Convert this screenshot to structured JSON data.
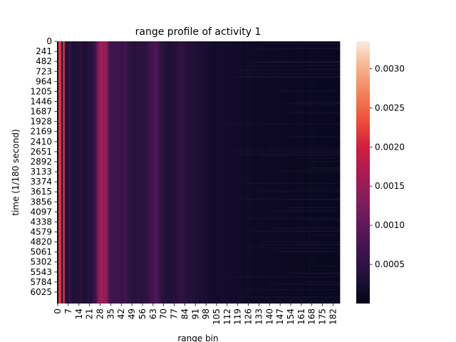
{
  "chart_data": {
    "type": "heatmap",
    "title": "range profile of activity 1",
    "xlabel": "range bin",
    "ylabel": "time (1/180 second)",
    "x_tick_labels": [
      "0",
      "7",
      "14",
      "21",
      "28",
      "35",
      "42",
      "49",
      "56",
      "63",
      "70",
      "77",
      "84",
      "91",
      "98",
      "105",
      "112",
      "119",
      "126",
      "133",
      "140",
      "147",
      "154",
      "161",
      "168",
      "175",
      "182"
    ],
    "y_tick_labels": [
      "0",
      "241",
      "482",
      "723",
      "964",
      "1205",
      "1446",
      "1687",
      "1928",
      "2169",
      "2410",
      "2651",
      "2892",
      "3133",
      "3374",
      "3615",
      "3856",
      "4097",
      "4338",
      "4579",
      "4820",
      "5061",
      "5302",
      "5543",
      "5784",
      "6025"
    ],
    "n_range_bins": 187,
    "n_time_samples": 6300,
    "colormap": "rocket",
    "colorbar_range": [
      0.0,
      0.00335
    ],
    "colorbar_tick_labels": [
      "0.0005",
      "0.0010",
      "0.0015",
      "0.0020",
      "0.0025",
      "0.0030"
    ],
    "colorbar_tick_values": [
      0.0005,
      0.001,
      0.0015,
      0.002,
      0.0025,
      0.003
    ],
    "profile_breakpoints": [
      {
        "bin": 0,
        "value": 0.0001
      },
      {
        "bin": 1,
        "value": 0.002
      },
      {
        "bin": 2,
        "value": 0.0022
      },
      {
        "bin": 3,
        "value": 0.0004
      },
      {
        "bin": 4,
        "value": 0.0021
      },
      {
        "bin": 5,
        "value": 0.0006
      },
      {
        "bin": 6,
        "value": 0.0003
      },
      {
        "bin": 8,
        "value": 0.0005
      },
      {
        "bin": 10,
        "value": 0.0003
      },
      {
        "bin": 14,
        "value": 0.0004
      },
      {
        "bin": 18,
        "value": 0.0003
      },
      {
        "bin": 22,
        "value": 0.0004
      },
      {
        "bin": 25,
        "value": 0.0006
      },
      {
        "bin": 27,
        "value": 0.0013
      },
      {
        "bin": 29,
        "value": 0.0015
      },
      {
        "bin": 31,
        "value": 0.0015
      },
      {
        "bin": 33,
        "value": 0.0012
      },
      {
        "bin": 35,
        "value": 0.0007
      },
      {
        "bin": 40,
        "value": 0.0006
      },
      {
        "bin": 45,
        "value": 0.0007
      },
      {
        "bin": 48,
        "value": 0.0005
      },
      {
        "bin": 52,
        "value": 0.0004
      },
      {
        "bin": 58,
        "value": 0.0005
      },
      {
        "bin": 62,
        "value": 0.0007
      },
      {
        "bin": 65,
        "value": 0.0008
      },
      {
        "bin": 68,
        "value": 0.0005
      },
      {
        "bin": 72,
        "value": 0.0003
      },
      {
        "bin": 78,
        "value": 0.0004
      },
      {
        "bin": 82,
        "value": 0.0005
      },
      {
        "bin": 86,
        "value": 0.0004
      },
      {
        "bin": 92,
        "value": 0.0003
      },
      {
        "bin": 100,
        "value": 0.0002
      },
      {
        "bin": 110,
        "value": 0.0002
      },
      {
        "bin": 125,
        "value": 0.00015
      },
      {
        "bin": 150,
        "value": 0.0001
      },
      {
        "bin": 186,
        "value": 8e-05
      }
    ]
  }
}
